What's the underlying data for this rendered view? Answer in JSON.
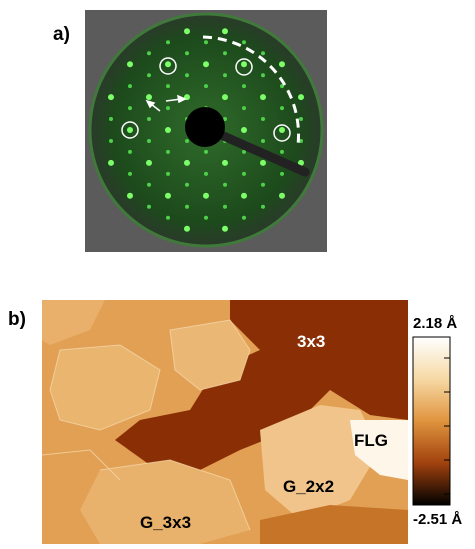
{
  "panels": [
    {
      "label": "a)"
    },
    {
      "label": "b)",
      "annotations": [
        "3x3",
        "FLG",
        "G_2x2",
        "G_3x3"
      ],
      "colorbar": {
        "max": "2.18 Å",
        "min": "-2.51 Å"
      }
    }
  ]
}
